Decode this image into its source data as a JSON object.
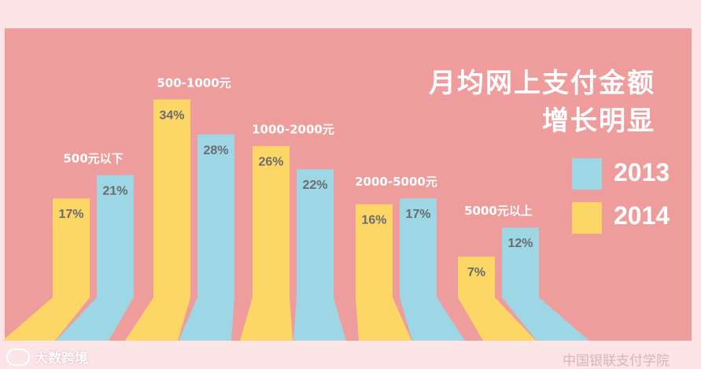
{
  "title": {
    "line1": "月均网上支付金额",
    "line2": "增长明显"
  },
  "legend": [
    {
      "label": "2013",
      "color": "#9dd6e4"
    },
    {
      "label": "2014",
      "color": "#fcd766"
    }
  ],
  "footer": {
    "left_brand": "大数跨境",
    "right_source": "中国银联支付学院"
  },
  "chart_data": {
    "type": "bar",
    "categories": [
      "500元以下",
      "500-1000元",
      "1000-2000元",
      "2000-5000元",
      "5000元以上"
    ],
    "series": [
      {
        "name": "2014",
        "color": "#fcd766",
        "values": [
          17,
          34,
          26,
          16,
          7
        ],
        "labels": [
          "17%",
          "34%",
          "26%",
          "16%",
          "7%"
        ]
      },
      {
        "name": "2013",
        "color": "#9dd6e4",
        "values": [
          21,
          28,
          22,
          17,
          12
        ],
        "labels": [
          "21%",
          "28%",
          "22%",
          "17%",
          "12%"
        ]
      }
    ],
    "value_unit": "%",
    "title": "月均网上支付金额 增长明显"
  }
}
